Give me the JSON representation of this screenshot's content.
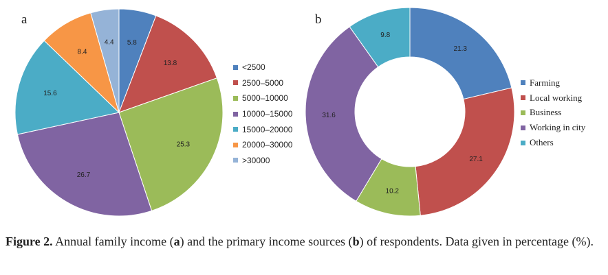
{
  "panel_a_letter": "a",
  "panel_b_letter": "b",
  "caption": {
    "label": "Figure 2.",
    "text_1": " Annual family income (",
    "a": "a",
    "text_2": ") and the primary income sources (",
    "b": "b",
    "text_3": ") of respondents. Data given in percentage (%)."
  },
  "chart_data": [
    {
      "type": "pie",
      "title": "",
      "categories": [
        "<2500",
        "2500–5000",
        "5000–10000",
        "10000–15000",
        "15000–20000",
        "20000–30000",
        ">30000"
      ],
      "values": [
        5.8,
        13.8,
        25.3,
        26.7,
        15.6,
        8.4,
        4.4
      ],
      "data_labels": [
        "5.8",
        "13.8",
        "25.3",
        "26.7",
        "15.6",
        "8.4",
        "4.4"
      ],
      "colors": [
        "#4F81BD",
        "#C0504D",
        "#9BBB59",
        "#8064A2",
        "#4BACC6",
        "#F79646",
        "#95B3D7"
      ],
      "legend": "right"
    },
    {
      "type": "pie",
      "style": "donut",
      "title": "",
      "categories": [
        "Farming",
        "Local working",
        "Business",
        "Working in city",
        "Others"
      ],
      "values": [
        21.3,
        27.1,
        10.2,
        31.6,
        9.8
      ],
      "data_labels": [
        "21.3",
        "27.1",
        "10.2",
        "31.6",
        "9.8"
      ],
      "colors": [
        "#4F81BD",
        "#C0504D",
        "#9BBB59",
        "#8064A2",
        "#4BACC6"
      ],
      "legend": "right"
    }
  ]
}
